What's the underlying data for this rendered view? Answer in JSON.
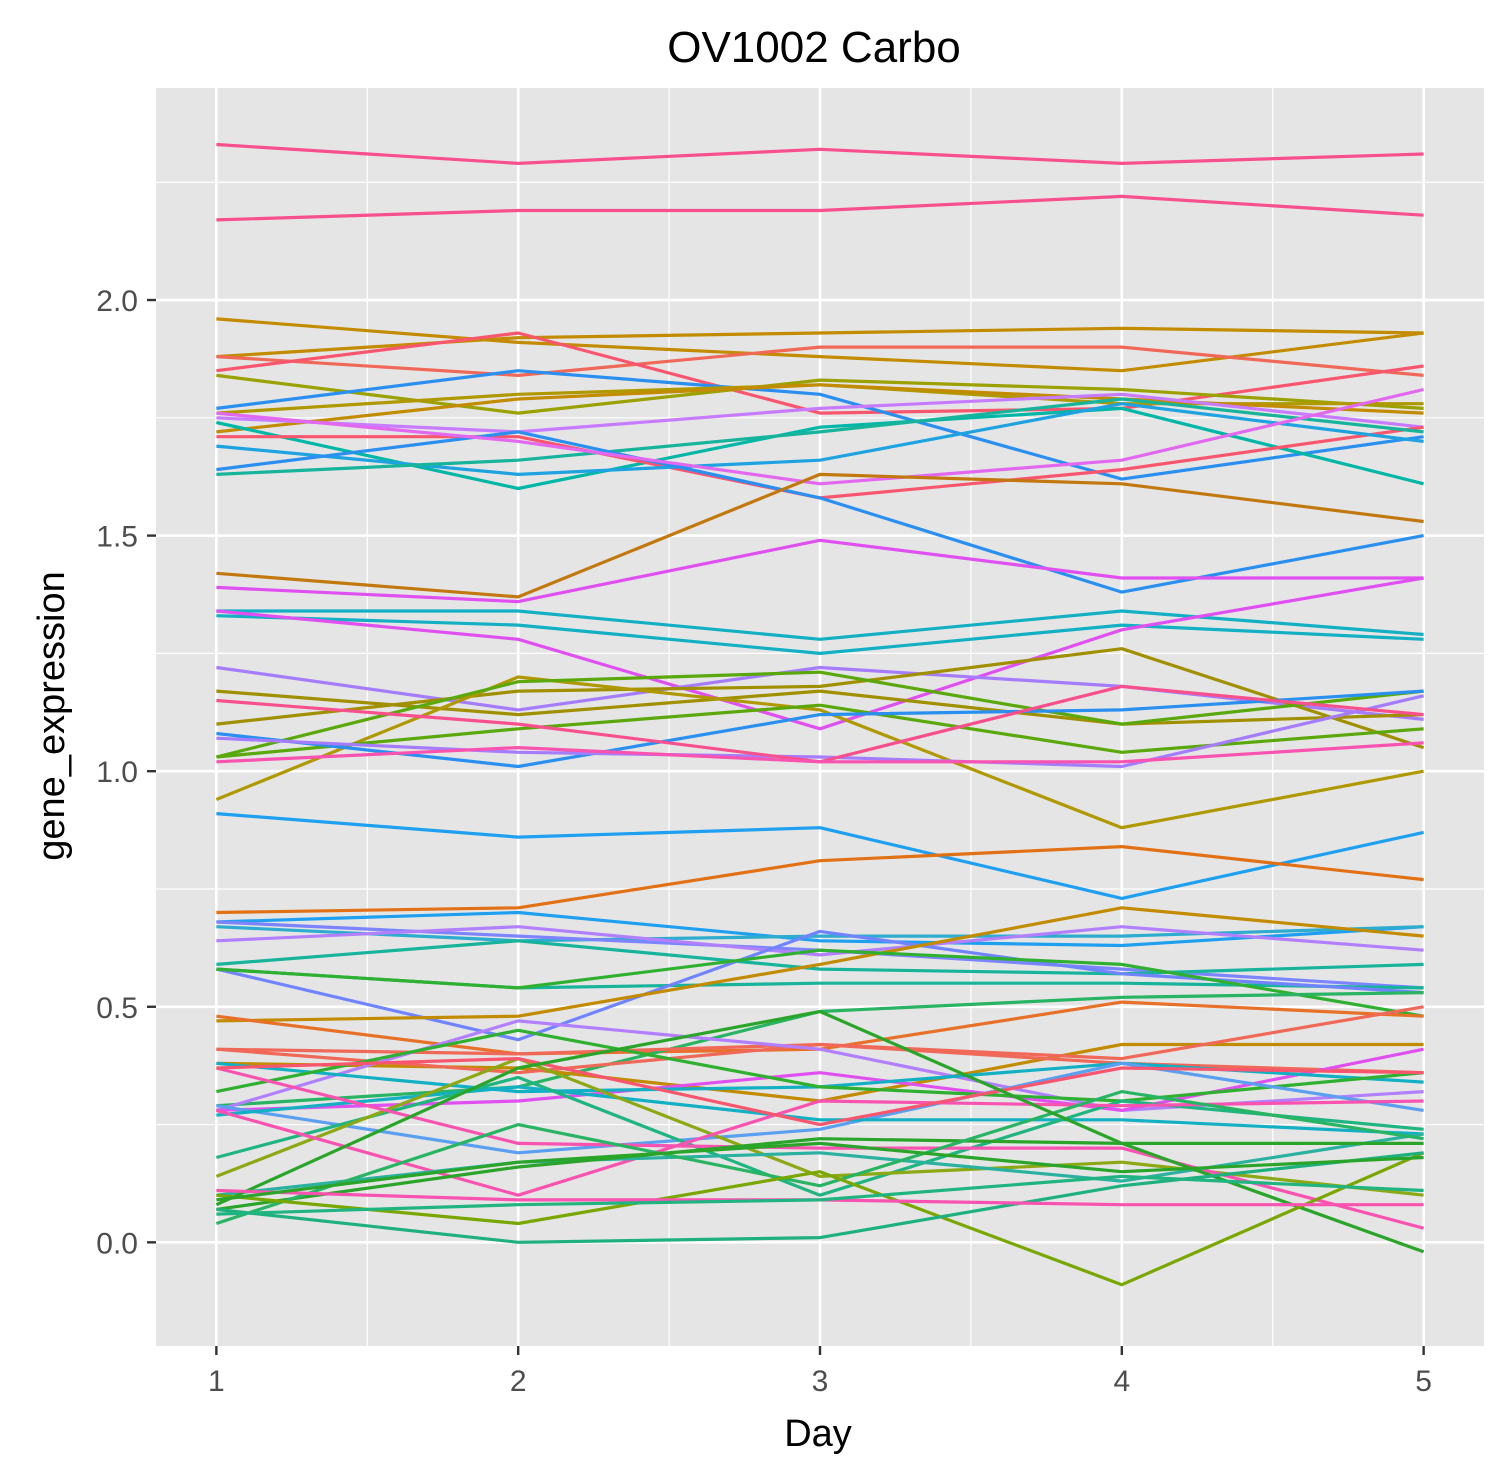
{
  "chart_data": {
    "type": "line",
    "title": "OV1002 Carbo",
    "xlabel": "Day",
    "ylabel": "gene_expression",
    "x": [
      1,
      2,
      3,
      4,
      5
    ],
    "xlim": [
      0.8,
      5.2
    ],
    "ylim": [
      -0.22,
      2.45
    ],
    "xticks": [
      "1",
      "2",
      "3",
      "4",
      "5"
    ],
    "yticks": [
      "0.0",
      "0.5",
      "1.0",
      "1.5",
      "2.0"
    ],
    "ytick_values": [
      0.0,
      0.5,
      1.0,
      1.5,
      2.0
    ],
    "grid": true,
    "legend": "none",
    "background": "#e5e5e5",
    "series": [
      {
        "color": "#f8508d",
        "values": [
          2.33,
          2.29,
          2.32,
          2.29,
          2.31
        ]
      },
      {
        "color": "#f8508d",
        "values": [
          2.17,
          2.19,
          2.19,
          2.22,
          2.18
        ]
      },
      {
        "color": "#c28b00",
        "values": [
          1.96,
          1.91,
          1.88,
          1.85,
          1.93
        ]
      },
      {
        "color": "#c28b00",
        "values": [
          1.88,
          1.92,
          1.93,
          1.94,
          1.93
        ]
      },
      {
        "color": "#f06858",
        "values": [
          1.88,
          1.84,
          1.9,
          1.9,
          1.84
        ]
      },
      {
        "color": "#f8566f",
        "values": [
          1.85,
          1.93,
          1.76,
          1.77,
          1.86
        ]
      },
      {
        "color": "#9ba100",
        "values": [
          1.84,
          1.76,
          1.83,
          1.81,
          1.77
        ]
      },
      {
        "color": "#2b8ff0",
        "values": [
          1.77,
          1.85,
          1.8,
          1.62,
          1.71
        ]
      },
      {
        "color": "#b09800",
        "values": [
          1.76,
          1.8,
          1.82,
          1.78,
          1.78
        ]
      },
      {
        "color": "#c28b00",
        "values": [
          1.72,
          1.79,
          1.82,
          1.79,
          1.76
        ]
      },
      {
        "color": "#00b6a6",
        "values": [
          1.74,
          1.6,
          1.73,
          1.77,
          1.61
        ]
      },
      {
        "color": "#c77cff",
        "values": [
          1.75,
          1.72,
          1.77,
          1.8,
          1.73
        ]
      },
      {
        "color": "#f8566f",
        "values": [
          1.71,
          1.71,
          1.58,
          1.64,
          1.73
        ]
      },
      {
        "color": "#1fa2e0",
        "values": [
          1.69,
          1.63,
          1.66,
          1.78,
          1.7
        ]
      },
      {
        "color": "#17b49b",
        "values": [
          1.63,
          1.66,
          1.72,
          1.79,
          1.72
        ]
      },
      {
        "color": "#2b8ff0",
        "values": [
          1.64,
          1.72,
          1.58,
          1.38,
          1.5
        ]
      },
      {
        "color": "#e368f0",
        "values": [
          1.76,
          1.7,
          1.61,
          1.66,
          1.81
        ]
      },
      {
        "color": "#c2780f",
        "values": [
          1.42,
          1.37,
          1.63,
          1.61,
          1.53
        ]
      },
      {
        "color": "#e050f0",
        "values": [
          1.39,
          1.36,
          1.49,
          1.41,
          1.41
        ]
      },
      {
        "color": "#13b0c4",
        "values": [
          1.34,
          1.34,
          1.28,
          1.34,
          1.29
        ]
      },
      {
        "color": "#13b0c4",
        "values": [
          1.33,
          1.31,
          1.25,
          1.31,
          1.28
        ]
      },
      {
        "color": "#e050f0",
        "values": [
          1.34,
          1.28,
          1.09,
          1.3,
          1.41
        ]
      },
      {
        "color": "#a57dfc",
        "values": [
          1.22,
          1.13,
          1.22,
          1.18,
          1.11
        ]
      },
      {
        "color": "#a09000",
        "values": [
          1.17,
          1.12,
          1.17,
          1.1,
          1.12
        ]
      },
      {
        "color": "#a09000",
        "values": [
          1.1,
          1.17,
          1.18,
          1.26,
          1.05
        ]
      },
      {
        "color": "#b09800",
        "values": [
          0.94,
          1.2,
          1.13,
          0.88,
          1.0
        ]
      },
      {
        "color": "#5aa80c",
        "values": [
          1.03,
          1.09,
          1.14,
          1.04,
          1.09
        ]
      },
      {
        "color": "#5aa80c",
        "values": [
          1.03,
          1.19,
          1.21,
          1.1,
          1.17
        ]
      },
      {
        "color": "#2b8ff0",
        "values": [
          1.08,
          1.01,
          1.12,
          1.13,
          1.17
        ]
      },
      {
        "color": "#a57dfc",
        "values": [
          1.07,
          1.04,
          1.03,
          1.01,
          1.16
        ]
      },
      {
        "color": "#f8508d",
        "values": [
          1.15,
          1.1,
          1.02,
          1.18,
          1.12
        ]
      },
      {
        "color": "#f853b0",
        "values": [
          1.02,
          1.05,
          1.02,
          1.02,
          1.06
        ]
      },
      {
        "color": "#1f9ff0",
        "values": [
          0.91,
          0.86,
          0.88,
          0.73,
          0.87
        ]
      },
      {
        "color": "#e27116",
        "values": [
          0.7,
          0.71,
          0.81,
          0.84,
          0.77
        ]
      },
      {
        "color": "#1f9ff0",
        "values": [
          0.68,
          0.7,
          0.64,
          0.63,
          0.67
        ]
      },
      {
        "color": "#2eaccf",
        "values": [
          0.67,
          0.64,
          0.65,
          0.65,
          0.67
        ]
      },
      {
        "color": "#7c84ff",
        "values": [
          0.68,
          0.65,
          0.62,
          0.58,
          0.54
        ]
      },
      {
        "color": "#b27fff",
        "values": [
          0.64,
          0.67,
          0.61,
          0.67,
          0.62
        ]
      },
      {
        "color": "#17b49b",
        "values": [
          0.59,
          0.64,
          0.58,
          0.57,
          0.59
        ]
      },
      {
        "color": "#17b49b",
        "values": [
          0.58,
          0.54,
          0.55,
          0.55,
          0.54
        ]
      },
      {
        "color": "#7084ff",
        "values": [
          0.58,
          0.43,
          0.66,
          0.57,
          0.53
        ]
      },
      {
        "color": "#c28b00",
        "values": [
          0.47,
          0.48,
          0.59,
          0.71,
          0.65
        ]
      },
      {
        "color": "#30b030",
        "values": [
          0.58,
          0.54,
          0.62,
          0.59,
          0.48
        ]
      },
      {
        "color": "#e8712a",
        "values": [
          0.48,
          0.4,
          0.41,
          0.51,
          0.48
        ]
      },
      {
        "color": "#28b463",
        "values": [
          0.29,
          0.33,
          0.49,
          0.52,
          0.53
        ]
      },
      {
        "color": "#c28b00",
        "values": [
          0.38,
          0.37,
          0.3,
          0.42,
          0.42
        ]
      },
      {
        "color": "#f06858",
        "values": [
          0.41,
          0.4,
          0.42,
          0.39,
          0.5
        ]
      },
      {
        "color": "#f06858",
        "values": [
          0.41,
          0.36,
          0.42,
          0.38,
          0.36
        ]
      },
      {
        "color": "#b27fff",
        "values": [
          0.28,
          0.47,
          0.41,
          0.28,
          0.32
        ]
      },
      {
        "color": "#e050f0",
        "values": [
          0.28,
          0.3,
          0.36,
          0.28,
          0.41
        ]
      },
      {
        "color": "#13b0c4",
        "values": [
          0.38,
          0.32,
          0.33,
          0.38,
          0.34
        ]
      },
      {
        "color": "#30b030",
        "values": [
          0.32,
          0.45,
          0.33,
          0.3,
          0.36
        ]
      },
      {
        "color": "#5a9ff0",
        "values": [
          0.29,
          0.19,
          0.24,
          0.38,
          0.28
        ]
      },
      {
        "color": "#13b0c4",
        "values": [
          0.27,
          0.33,
          0.26,
          0.26,
          0.23
        ]
      },
      {
        "color": "#20b480",
        "values": [
          0.18,
          0.35,
          0.1,
          0.3,
          0.24
        ]
      },
      {
        "color": "#8ca815",
        "values": [
          0.14,
          0.39,
          0.14,
          0.17,
          0.1
        ]
      },
      {
        "color": "#f853b0",
        "values": [
          0.37,
          0.21,
          0.2,
          0.2,
          0.03
        ]
      },
      {
        "color": "#f853b0",
        "values": [
          0.28,
          0.1,
          0.3,
          0.29,
          0.3
        ]
      },
      {
        "color": "#2ab1a0",
        "values": [
          0.1,
          0.17,
          0.19,
          0.13,
          0.23
        ]
      },
      {
        "color": "#2aa52a",
        "values": [
          0.07,
          0.16,
          0.22,
          0.21,
          0.21
        ]
      },
      {
        "color": "#f8566f",
        "values": [
          0.37,
          0.39,
          0.25,
          0.37,
          0.36
        ]
      },
      {
        "color": "#28b463",
        "values": [
          0.04,
          0.25,
          0.12,
          0.32,
          0.22
        ]
      },
      {
        "color": "#2aa52a",
        "values": [
          0.08,
          0.37,
          0.49,
          0.21,
          -0.02
        ]
      },
      {
        "color": "#7aa600",
        "values": [
          0.1,
          0.04,
          0.15,
          -0.09,
          0.19
        ]
      },
      {
        "color": "#1fb080",
        "values": [
          0.07,
          0.0,
          0.01,
          0.12,
          0.19
        ]
      },
      {
        "color": "#f853b0",
        "values": [
          0.11,
          0.09,
          0.09,
          0.08,
          0.08
        ]
      },
      {
        "color": "#2aa52a",
        "values": [
          0.09,
          0.17,
          0.21,
          0.15,
          0.18
        ]
      },
      {
        "color": "#20b480",
        "values": [
          0.06,
          0.08,
          0.09,
          0.14,
          0.11
        ]
      }
    ]
  }
}
